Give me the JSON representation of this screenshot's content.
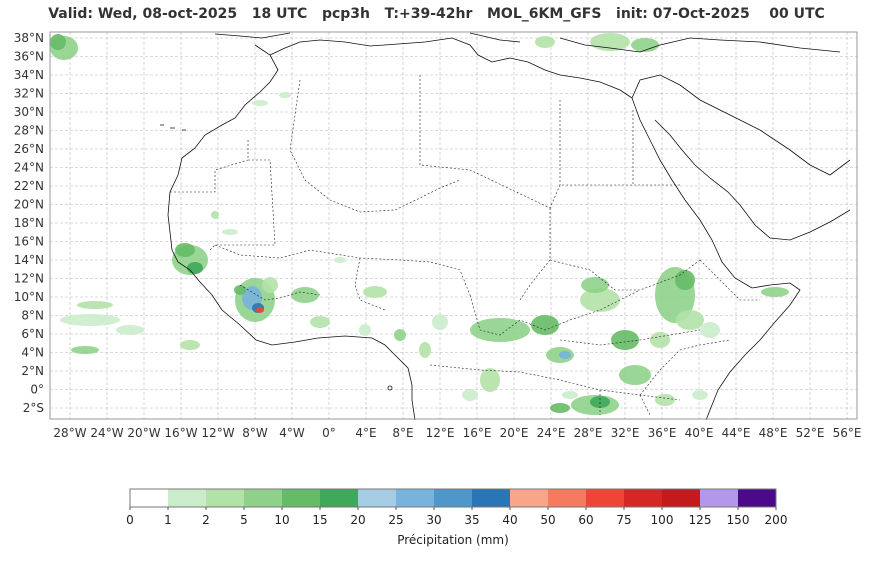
{
  "header": {
    "title": "Valid: Wed, 08-oct-2025   18 UTC   pcp3h   T:+39-42hr   MOL_6KM_GFS   init: 07-Oct-2025    00 UTC"
  },
  "map": {
    "lat_labels": [
      "38°N",
      "36°N",
      "34°N",
      "32°N",
      "30°N",
      "28°N",
      "26°N",
      "24°N",
      "22°N",
      "20°N",
      "18°N",
      "16°N",
      "14°N",
      "12°N",
      "10°N",
      "8°N",
      "6°N",
      "4°N",
      "2°N",
      "0°",
      "2°S"
    ],
    "lon_labels": [
      "28°W",
      "24°W",
      "20°W",
      "16°W",
      "12°W",
      "8°W",
      "4°W",
      "0°",
      "4°E",
      "8°E",
      "12°E",
      "16°E",
      "20°E",
      "24°E",
      "28°E",
      "32°E",
      "36°E",
      "40°E",
      "44°E",
      "48°E",
      "52°E",
      "56°E"
    ],
    "grid": true
  },
  "colorbar": {
    "title": "Précipitation (mm)",
    "ticks": [
      "0",
      "1",
      "2",
      "5",
      "10",
      "15",
      "20",
      "25",
      "30",
      "35",
      "40",
      "50",
      "60",
      "75",
      "100",
      "125",
      "150",
      "200"
    ],
    "colors": [
      "#ffffff",
      "#cbeccb",
      "#b3e2a8",
      "#8fd18a",
      "#66bb66",
      "#3fa85a",
      "#a6cce4",
      "#79b3db",
      "#4f97c8",
      "#2a75b5",
      "#f9a589",
      "#f67a5f",
      "#ef4536",
      "#d62724",
      "#c21a1d",
      "#b397eb",
      "#4b0a8a"
    ]
  }
}
